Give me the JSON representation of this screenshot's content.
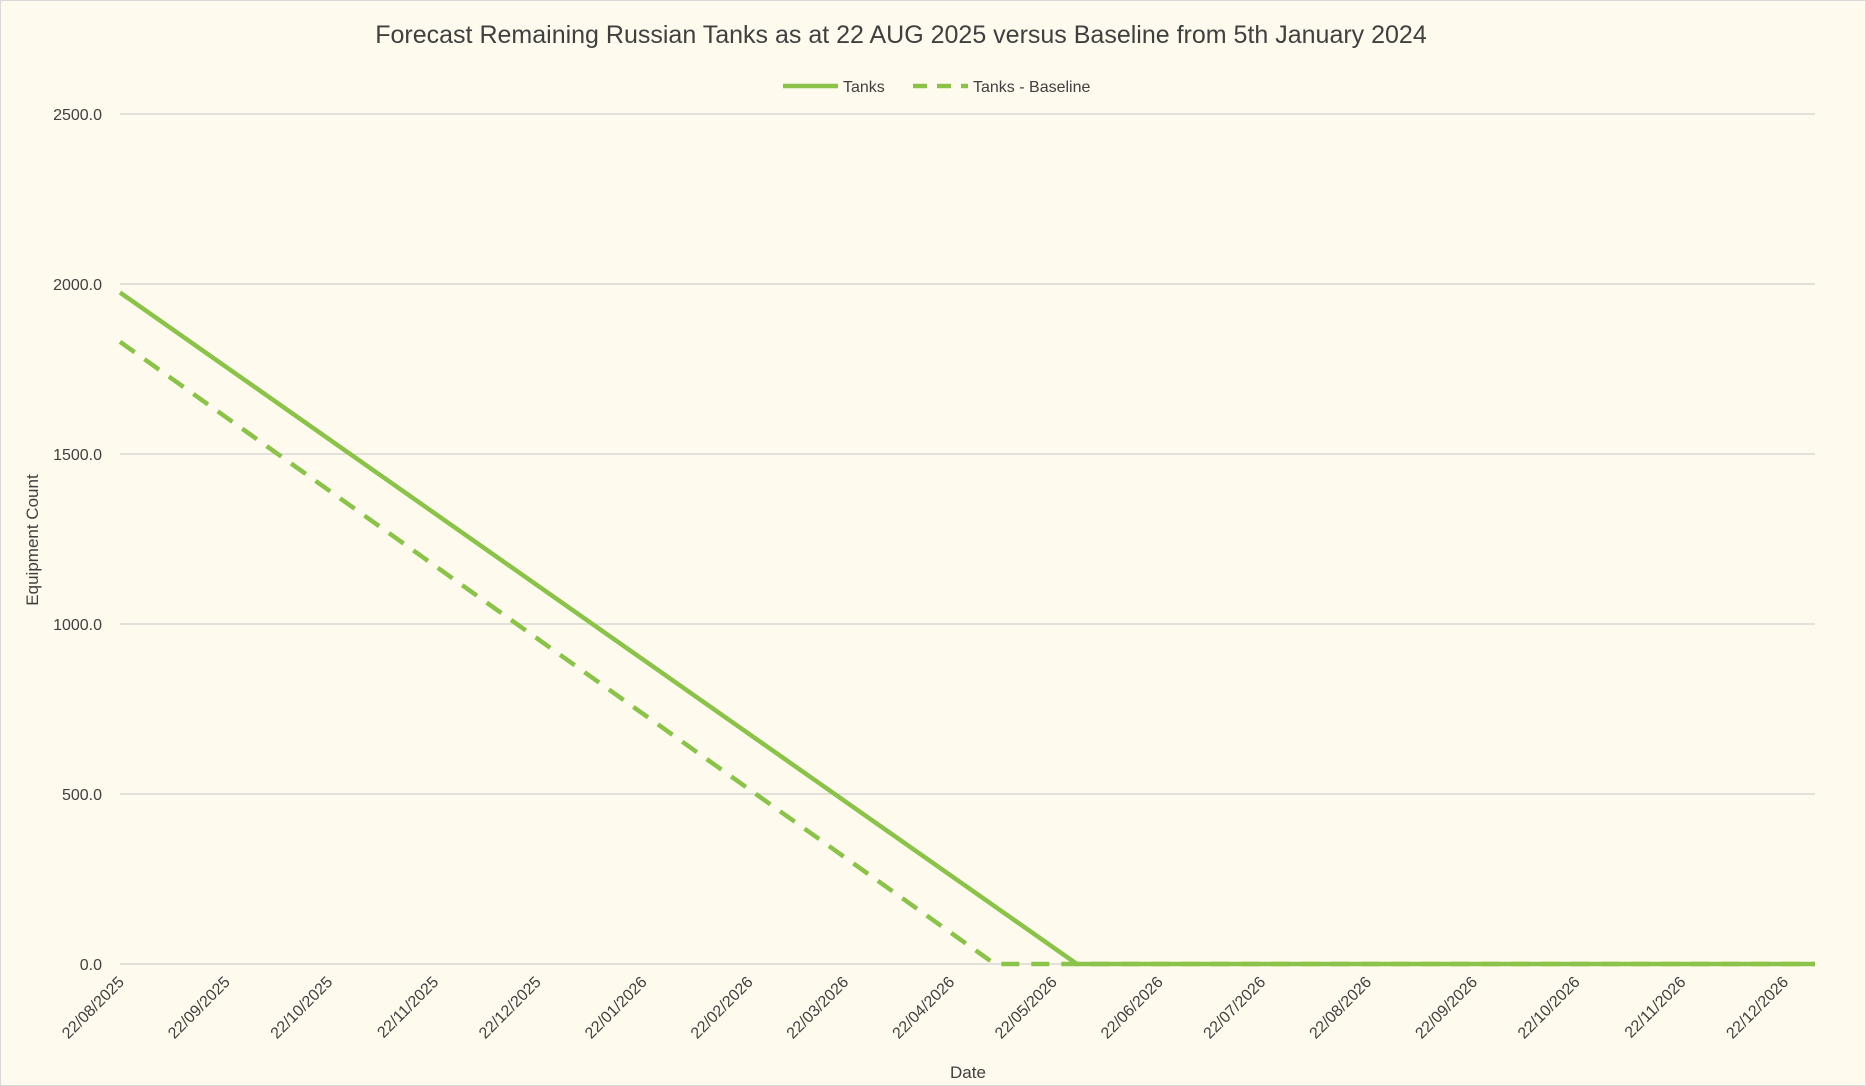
{
  "chart_data": {
    "type": "line",
    "title": "Forecast Remaining Russian Tanks as at 22 AUG 2025 versus Baseline from 5th January 2024",
    "xlabel": "Date",
    "ylabel": "Equipment Count",
    "ylim": [
      0,
      2500
    ],
    "yticks": [
      0,
      500,
      1000,
      1500,
      2000,
      2500
    ],
    "ytick_labels": [
      "0.0",
      "500.0",
      "1000.0",
      "1500.0",
      "2000.0",
      "2500.0"
    ],
    "xlim": [
      "2025-08-22",
      "2026-12-31"
    ],
    "xticks": [
      "2025-08-22",
      "2025-09-22",
      "2025-10-22",
      "2025-11-22",
      "2025-12-22",
      "2026-01-22",
      "2026-02-22",
      "2026-03-22",
      "2026-04-22",
      "2026-05-22",
      "2026-06-22",
      "2026-07-22",
      "2026-08-22",
      "2026-09-22",
      "2026-10-22",
      "2026-11-22",
      "2026-12-22"
    ],
    "xtick_labels": [
      "22/08/2025",
      "22/09/2025",
      "22/10/2025",
      "22/11/2025",
      "22/12/2025",
      "22/01/2026",
      "22/02/2026",
      "22/03/2026",
      "22/04/2026",
      "22/05/2026",
      "22/06/2026",
      "22/07/2026",
      "22/08/2026",
      "22/09/2026",
      "22/10/2026",
      "22/11/2026",
      "22/12/2026"
    ],
    "grid": "horizontal",
    "legend": "top-center",
    "series": [
      {
        "name": "Tanks",
        "style": "solid",
        "color": "#8bc34a",
        "x": [
          "2025-08-22",
          "2026-05-29",
          "2026-12-31"
        ],
        "values": [
          1975,
          0,
          0
        ]
      },
      {
        "name": "Tanks - Baseline",
        "style": "dashed",
        "color": "#8bc34a",
        "x": [
          "2025-08-22",
          "2026-05-05",
          "2026-12-31"
        ],
        "values": [
          1830,
          0,
          0
        ]
      }
    ]
  }
}
